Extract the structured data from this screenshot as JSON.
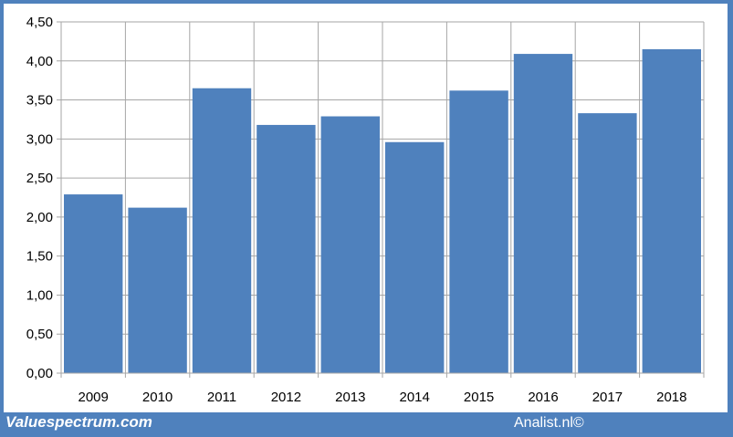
{
  "chart_data": {
    "type": "bar",
    "categories": [
      "2009",
      "2010",
      "2011",
      "2012",
      "2013",
      "2014",
      "2015",
      "2016",
      "2017",
      "2018"
    ],
    "values": [
      2.29,
      2.12,
      3.65,
      3.18,
      3.29,
      2.96,
      3.62,
      4.09,
      3.33,
      4.15
    ],
    "ylim": [
      0,
      4.5
    ],
    "yticks": [
      "0,00",
      "0,50",
      "1,00",
      "1,50",
      "2,00",
      "2,50",
      "3,00",
      "3,50",
      "4,00",
      "4,50"
    ],
    "grid": true,
    "bar_color": "#4f81bd",
    "title": "",
    "xlabel": "",
    "ylabel": ""
  },
  "footer": {
    "left": "Valuespectrum.com",
    "right": "Analist.nl©"
  },
  "colors": {
    "frame": "#4f81bd",
    "bar": "#4f81bd",
    "grid": "#a6a6a6"
  }
}
